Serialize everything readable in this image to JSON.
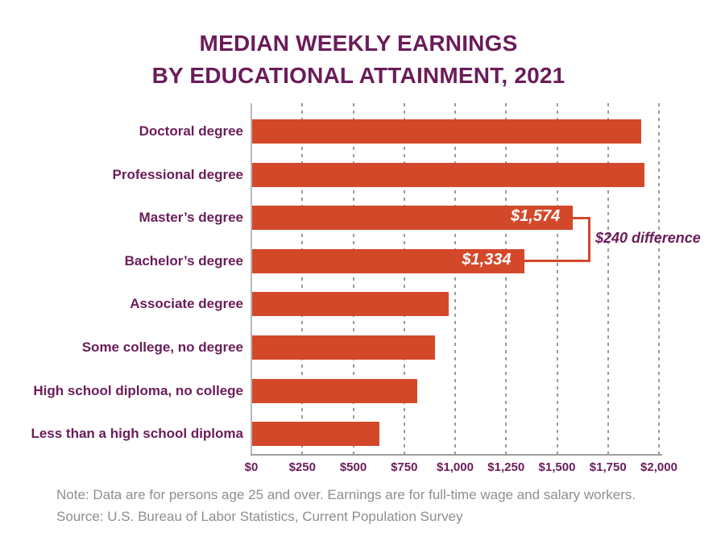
{
  "title": {
    "line1": "MEDIAN WEEKLY EARNINGS",
    "line2": "BY EDUCATIONAL ATTAINMENT, 2021"
  },
  "chart_data": {
    "type": "bar",
    "orientation": "horizontal",
    "title": "MEDIAN WEEKLY EARNINGS BY EDUCATIONAL ATTAINMENT, 2021",
    "categories": [
      "Doctoral degree",
      "Professional degree",
      "Master’s degree",
      "Bachelor’s degree",
      "Associate degree",
      "Some college, no degree",
      "High school diploma, no college",
      "Less than a high school diploma"
    ],
    "values": [
      1909,
      1924,
      1574,
      1334,
      963,
      899,
      809,
      626
    ],
    "value_labels": [
      "",
      "",
      "$1,574",
      "$1,334",
      "",
      "",
      "",
      ""
    ],
    "xlabel": "",
    "ylabel": "",
    "xlim": [
      0,
      2000
    ],
    "x_tick_values": [
      0,
      250,
      500,
      750,
      1000,
      1250,
      1500,
      1750,
      2000
    ],
    "x_ticks": [
      "$0",
      "$250",
      "$500",
      "$750",
      "$1,000",
      "$1,250",
      "$1,500",
      "$1,750",
      "$2,000"
    ],
    "grid": "vertical-dashed",
    "legend": "none",
    "annotation": {
      "text": "$240 difference",
      "between": [
        "Master’s degree",
        "Bachelor’s degree"
      ]
    },
    "colors": {
      "bar": "#d4482a",
      "value_label_text": "#ffffff",
      "axis_text": "#6b1c5a",
      "grid_line": "#9a9a9a",
      "axis_line": "#9e9e9e",
      "y_axis_line": "#b9b9b9",
      "annotation_text": "#6b1c5a",
      "bracket_line": "#d4482a",
      "title_text": "#6b1c5a",
      "note_text": "#8e8e8e",
      "background": "#ffffff"
    }
  },
  "notes": {
    "note": "Note: Data are for persons age 25 and over. Earnings are for full-time wage and salary workers.",
    "source": "Source: U.S. Bureau of Labor Statistics, Current Population Survey"
  }
}
